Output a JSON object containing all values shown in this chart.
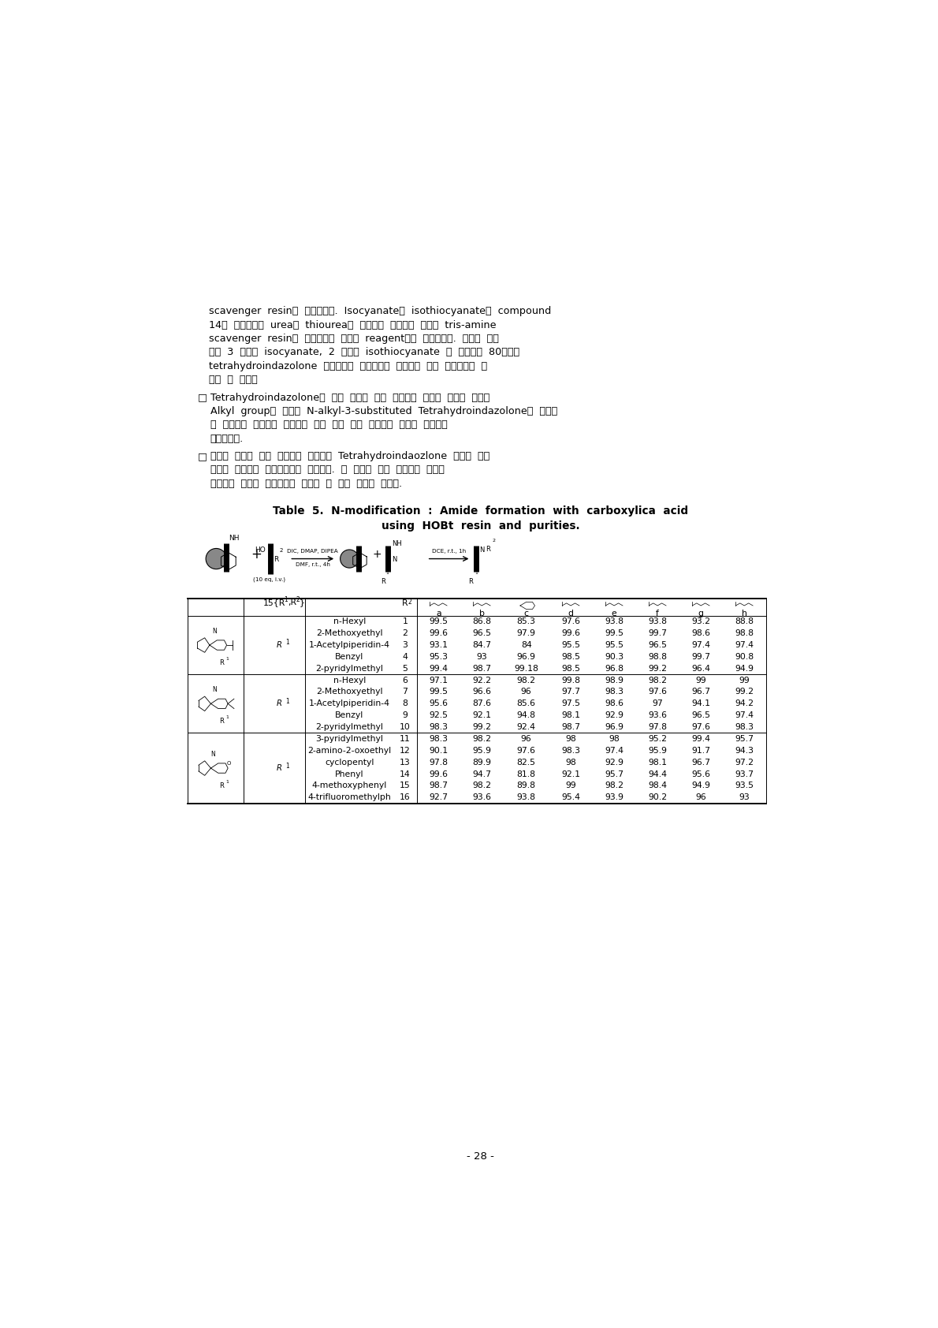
{
  "page_width": 11.9,
  "page_height": 16.84,
  "background_color": "#ffffff",
  "page_number": "- 28 -",
  "paragraph1_lines": [
    "scavenger  resin을  사용하였다.  Isocyanate와  isothiocyanate를  compound",
    "14와  반응시켜서  urea나  thiourea로  다양화된  화합물에  고체상  tris-amine",
    "scavenger  resin을  이용하여서  여분의  reagent들을  제거하였다.  이러한  방법",
    "으로  3  가지의  isocyanate,  2  가지의  isothiocyanate  로  다양화된  80가지의",
    "tetrahydroindazolone  화합물들을  역시별도의  정제과정  없이  효율적으로  합",
    "성할  수  있었다"
  ],
  "bullet1_lines": [
    "Tetrahydroindazolone은  매우  중요한  분자  골격으로  알려져  있지만  아미데",
    "Alkyl  group이  치환된  N-alkyl-3-substituted  Tetrahydroindazolone의  효율적",
    "인  합성법은  아직까지  보고되어  있지  않음  점을  고려하면  상당히  고무적인",
    "연구결과임."
  ],
  "bullet2_lines": [
    "새롭게  고안한  위의  합성법을  이용하여  Tetrahydroindaozlone  골격을  지닌",
    "저분자  화합물의  라이브러리를  구축중임.  이  과정을  통해  만들어진  저분자",
    "화합물은  다양한  생리현상에  적용할  수  있을  것으로  기대됨."
  ],
  "table_title_line1": "Table  5.  N-modification  :  Amide  formation  with  carboxylica  acid",
  "table_title_line2": "using  HOBt  resin  and  purities.",
  "col_headers": [
    "a",
    "b",
    "c",
    "d",
    "e",
    "f",
    "g",
    "h"
  ],
  "groups": [
    {
      "rows": [
        {
          "r2_name": "n-Hexyl",
          "r2_num": "1",
          "values": [
            99.5,
            86.8,
            85.3,
            97.6,
            93.8,
            93.8,
            93.2,
            88.8
          ]
        },
        {
          "r2_name": "2-Methoxyethyl",
          "r2_num": "2",
          "values": [
            99.6,
            96.5,
            97.9,
            99.6,
            99.5,
            99.7,
            98.6,
            98.8
          ]
        },
        {
          "r2_name": "1-Acetylpiperidin-4",
          "r2_num": "3",
          "values": [
            93.1,
            84.7,
            84.0,
            95.5,
            95.5,
            96.5,
            97.4,
            97.4
          ]
        },
        {
          "r2_name": "Benzyl",
          "r2_num": "4",
          "values": [
            95.3,
            93.0,
            96.9,
            98.5,
            90.3,
            98.8,
            99.7,
            90.8
          ]
        },
        {
          "r2_name": "2-pyridylmethyl",
          "r2_num": "5",
          "values": [
            99.4,
            98.7,
            99.18,
            98.5,
            96.8,
            99.2,
            96.4,
            94.9
          ]
        }
      ]
    },
    {
      "rows": [
        {
          "r2_name": "n-Hexyl",
          "r2_num": "6",
          "values": [
            97.1,
            92.2,
            98.2,
            99.8,
            98.9,
            98.2,
            99.0,
            99.0
          ]
        },
        {
          "r2_name": "2-Methoxyethyl",
          "r2_num": "7",
          "values": [
            99.5,
            96.6,
            96.0,
            97.7,
            98.3,
            97.6,
            96.7,
            99.2
          ]
        },
        {
          "r2_name": "1-Acetylpiperidin-4",
          "r2_num": "8",
          "values": [
            95.6,
            87.6,
            85.6,
            97.5,
            98.6,
            97.0,
            94.1,
            94.2
          ]
        },
        {
          "r2_name": "Benzyl",
          "r2_num": "9",
          "values": [
            92.5,
            92.1,
            94.8,
            98.1,
            92.9,
            93.6,
            96.5,
            97.4
          ]
        },
        {
          "r2_name": "2-pyridylmethyl",
          "r2_num": "10",
          "values": [
            98.3,
            99.2,
            92.4,
            98.7,
            96.9,
            97.8,
            97.6,
            98.3
          ]
        }
      ]
    },
    {
      "rows": [
        {
          "r2_name": "3-pyridylmethyl",
          "r2_num": "11",
          "values": [
            98.3,
            98.2,
            96.0,
            98.0,
            98.0,
            95.2,
            99.4,
            95.7
          ]
        },
        {
          "r2_name": "2-amino-2-oxoethyl",
          "r2_num": "12",
          "values": [
            90.1,
            95.9,
            97.6,
            98.3,
            97.4,
            95.9,
            91.7,
            94.3
          ]
        },
        {
          "r2_name": "cyclopentyl",
          "r2_num": "13",
          "values": [
            97.8,
            89.9,
            82.5,
            98.0,
            92.9,
            98.1,
            96.7,
            97.2
          ]
        },
        {
          "r2_name": "Phenyl",
          "r2_num": "14",
          "values": [
            99.6,
            94.7,
            81.8,
            92.1,
            95.7,
            94.4,
            95.6,
            93.7
          ]
        },
        {
          "r2_name": "4-methoxyphenyl",
          "r2_num": "15",
          "values": [
            98.7,
            98.2,
            89.8,
            99.0,
            98.2,
            98.4,
            94.9,
            93.5
          ]
        },
        {
          "r2_name": "4-trifluoromethylph",
          "r2_num": "16",
          "values": [
            92.7,
            93.6,
            93.8,
            95.4,
            93.9,
            90.2,
            96.0,
            93.0
          ]
        }
      ]
    }
  ]
}
